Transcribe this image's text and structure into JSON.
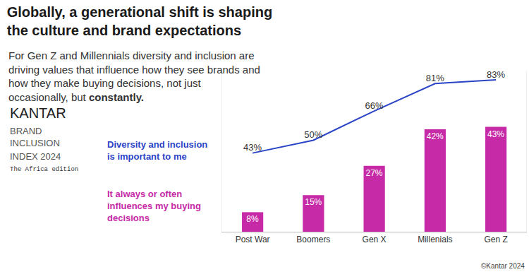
{
  "chart_data": {
    "type": "bar",
    "title": "Globally, a generational shift is shaping the culture and brand expectations",
    "subtitle": "For Gen Z and Millennials diversity and inclusion are driving values that influence how they see brands and how they make buying decisions, not just occasionally, but constantly.",
    "annotations": [
      "KANTAR",
      "BRAND",
      "INCLUSION",
      "INDEX 2024",
      "The Africa edition",
      "©Kantar 2024"
    ],
    "categories": [
      "Post War",
      "Boomers",
      "Gen X",
      "Millenials",
      "Gen Z"
    ],
    "series": [
      {
        "name": "Diversity and inclusion is important to me",
        "type": "line",
        "axis": "y2",
        "color": "#2b44c6",
        "values": [
          43,
          50,
          66,
          81,
          83
        ],
        "value_labels": [
          "43%",
          "50%",
          "66%",
          "81%",
          "83%"
        ]
      },
      {
        "name": "It always or often influences my buying decisions",
        "type": "bar",
        "color": "#c62aa6",
        "values": [
          8,
          15,
          27,
          42,
          43
        ],
        "value_labels": [
          "8%",
          "15%",
          "27%",
          "42%",
          "43%"
        ]
      }
    ],
    "ylim": [
      0,
      66
    ],
    "y2lim": [
      0,
      88
    ],
    "data_labels": true,
    "tick_labels": "x",
    "grid": false
  }
}
